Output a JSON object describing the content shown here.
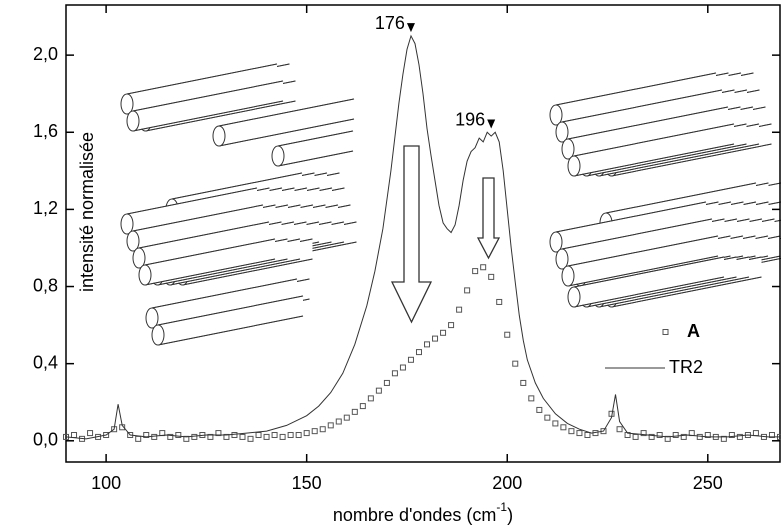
{
  "chart_data": {
    "type": "line",
    "x_label": [
      "nombre d'ondes (cm",
      "-1",
      ")"
    ],
    "y_label": "intensité normalisée",
    "xlim": [
      90,
      268
    ],
    "ylim": [
      -0.11,
      2.26
    ],
    "xticks": [
      100,
      150,
      200,
      250
    ],
    "yticks": [
      {
        "value": 0.0,
        "label": "0,0"
      },
      {
        "value": 0.4,
        "label": "0,4"
      },
      {
        "value": 0.8,
        "label": "0,8"
      },
      {
        "value": 1.2,
        "label": "1,2"
      },
      {
        "value": 1.6,
        "label": "1,6"
      },
      {
        "value": 2.0,
        "label": "2,0"
      }
    ],
    "legend": "lower right",
    "annotations": [
      {
        "text": "176",
        "x": 176,
        "y": 2.14
      },
      {
        "text": "196",
        "x": 196,
        "y": 1.64
      }
    ],
    "series": [
      {
        "name": "A",
        "color": "#555555",
        "mode": "markers",
        "x": [
          90,
          92,
          94,
          96,
          98,
          100,
          102,
          104,
          106,
          108,
          110,
          112,
          114,
          116,
          118,
          120,
          122,
          124,
          126,
          128,
          130,
          132,
          134,
          136,
          138,
          140,
          142,
          144,
          146,
          148,
          150,
          152,
          154,
          156,
          158,
          160,
          162,
          164,
          166,
          168,
          170,
          172,
          174,
          176,
          178,
          180,
          182,
          184,
          186,
          188,
          190,
          192,
          194,
          196,
          198,
          200,
          202,
          204,
          206,
          208,
          210,
          212,
          214,
          216,
          218,
          220,
          222,
          224,
          226,
          228,
          230,
          232,
          234,
          236,
          238,
          240,
          242,
          244,
          246,
          248,
          250,
          252,
          254,
          256,
          258,
          260,
          262,
          264,
          266,
          268
        ],
        "values": [
          0.02,
          0.03,
          0.01,
          0.04,
          0.02,
          0.03,
          0.06,
          0.07,
          0.03,
          0.01,
          0.03,
          0.02,
          0.04,
          0.02,
          0.03,
          0.01,
          0.02,
          0.03,
          0.02,
          0.04,
          0.02,
          0.03,
          0.02,
          0.01,
          0.03,
          0.02,
          0.03,
          0.02,
          0.03,
          0.03,
          0.04,
          0.05,
          0.06,
          0.08,
          0.1,
          0.12,
          0.15,
          0.18,
          0.22,
          0.26,
          0.3,
          0.35,
          0.38,
          0.42,
          0.46,
          0.5,
          0.53,
          0.56,
          0.6,
          0.68,
          0.78,
          0.88,
          0.9,
          0.85,
          0.72,
          0.55,
          0.4,
          0.3,
          0.22,
          0.16,
          0.12,
          0.09,
          0.07,
          0.05,
          0.04,
          0.03,
          0.04,
          0.05,
          0.14,
          0.06,
          0.03,
          0.02,
          0.04,
          0.02,
          0.03,
          0.01,
          0.03,
          0.02,
          0.04,
          0.02,
          0.03,
          0.02,
          0.01,
          0.03,
          0.02,
          0.03,
          0.04,
          0.02,
          0.03,
          0.02
        ]
      },
      {
        "name": "TR2",
        "color": "#333333",
        "mode": "line",
        "x": [
          90,
          95,
          100,
          102,
          103,
          104,
          106,
          110,
          115,
          120,
          125,
          130,
          135,
          140,
          145,
          150,
          153,
          156,
          159,
          162,
          165,
          167,
          169,
          171,
          173,
          174,
          175,
          176,
          177,
          178,
          179,
          180,
          181,
          182,
          183,
          184,
          185,
          186,
          187,
          188,
          189,
          190,
          191,
          192,
          193,
          194,
          195,
          196,
          197,
          198,
          199,
          200,
          201,
          202,
          203,
          204,
          205,
          207,
          209,
          212,
          215,
          218,
          221,
          224,
          226,
          227,
          228,
          230,
          235,
          240,
          245,
          250,
          255,
          260,
          265,
          268
        ],
        "values": [
          0.02,
          0.01,
          0.03,
          0.06,
          0.19,
          0.08,
          0.03,
          0.02,
          0.03,
          0.02,
          0.03,
          0.03,
          0.04,
          0.05,
          0.08,
          0.13,
          0.18,
          0.25,
          0.35,
          0.5,
          0.7,
          0.88,
          1.1,
          1.4,
          1.75,
          1.9,
          2.03,
          2.1,
          2.06,
          1.95,
          1.8,
          1.62,
          1.48,
          1.35,
          1.22,
          1.13,
          1.1,
          1.08,
          1.12,
          1.22,
          1.35,
          1.45,
          1.5,
          1.52,
          1.57,
          1.55,
          1.6,
          1.58,
          1.6,
          1.55,
          1.4,
          1.2,
          1.0,
          0.82,
          0.65,
          0.52,
          0.42,
          0.3,
          0.22,
          0.14,
          0.09,
          0.06,
          0.04,
          0.05,
          0.12,
          0.24,
          0.1,
          0.04,
          0.03,
          0.02,
          0.03,
          0.02,
          0.02,
          0.03,
          0.02,
          0.02
        ]
      }
    ]
  }
}
